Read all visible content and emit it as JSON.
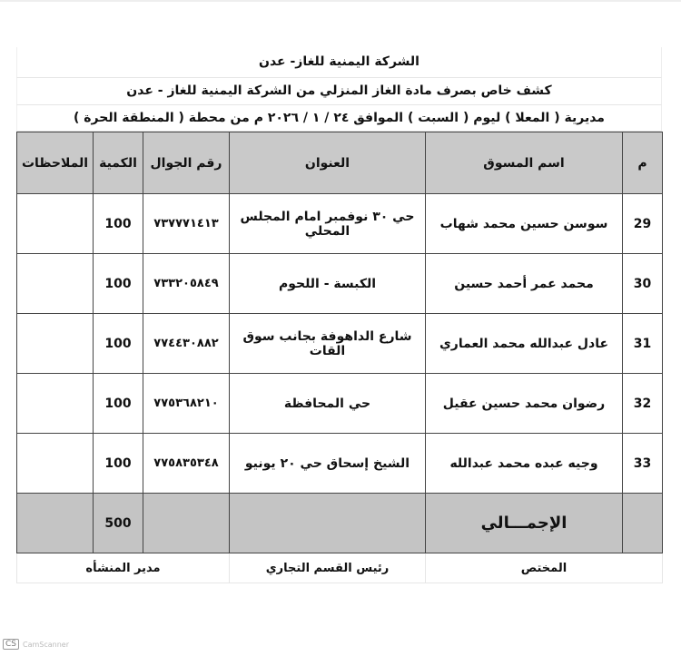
{
  "header": {
    "company": "الشركة اليمنية للغاز- عدن",
    "subtitle": "كشف خاص بصرف مادة الغاز المنزلي من الشركة اليمنية للغاز - عدن",
    "details": "مديرية ( المعلا ) ليوم ( السبت ) الموافق ٢٤ / ١ / ٢٠٢٦ م من محطة ( المنطقة الحرة )"
  },
  "table": {
    "columns": [
      "م",
      "اسم المسوق",
      "العنوان",
      "رقم الجوال",
      "الكمية",
      "الملاحظات"
    ],
    "rows": [
      {
        "no": "29",
        "name": "سوسن حسين محمد شهاب",
        "address": "حي ٣٠ نوفمبر امام المجلس المحلي",
        "phone": "٧٣٧٧٧١٤١٣",
        "qty": "100",
        "notes": ""
      },
      {
        "no": "30",
        "name": "محمد عمر أحمد حسين",
        "address": "الكبسة - اللحوم",
        "phone": "٧٣٣٢٠٥٨٤٩",
        "qty": "100",
        "notes": ""
      },
      {
        "no": "31",
        "name": "عادل عبدالله محمد العماري",
        "address": "شارع الداهوفة بجانب سوق القات",
        "phone": "٧٧٤٤٣٠٨٨٢",
        "qty": "100",
        "notes": ""
      },
      {
        "no": "32",
        "name": "رضوان محمد حسين عقيل",
        "address": "حي المحافظة",
        "phone": "٧٧٥٣٦٨٢١٠",
        "qty": "100",
        "notes": ""
      },
      {
        "no": "33",
        "name": "وجيه عبده محمد عبدالله",
        "address": "الشيخ إسحاق حي ٢٠ يونيو",
        "phone": "٧٧٥٨٣٥٣٤٨",
        "qty": "100",
        "notes": ""
      }
    ],
    "total_label": "الإجمـــالي",
    "total_qty": "500"
  },
  "signatures": {
    "specialist": "المختص",
    "commercial_head": "رئيس القسم التجاري",
    "facility_manager": "مدير المنشأه"
  },
  "watermark": "CamScanner"
}
